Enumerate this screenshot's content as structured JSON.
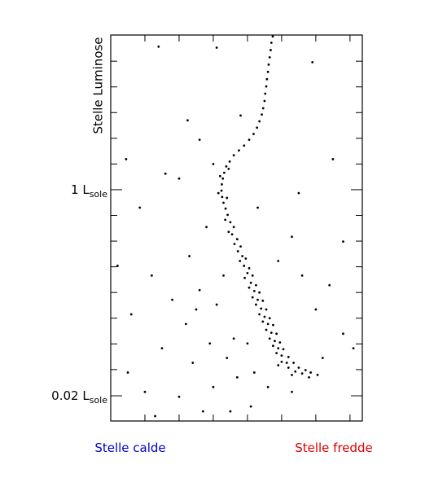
{
  "chart_data": {
    "type": "scatter",
    "ylabel": "Stelle Luminose",
    "annotations": [
      {
        "text": "Stelle calde",
        "color": "#0000cc"
      },
      {
        "text": "Stelle fredde",
        "color": "#dd0000"
      }
    ],
    "color": "#000000",
    "xlim": [
      0,
      7.36
    ],
    "xminorticks": [
      1,
      2,
      3,
      4,
      5,
      6,
      7
    ],
    "ylim": [
      1.64,
      9.6
    ],
    "yinvert": true,
    "yticks": [
      {
        "value": 4.83,
        "label": "1 L",
        "label_sub": "sole"
      },
      {
        "value": 9.08,
        "label": "0.02 L",
        "label_sub": "sole"
      }
    ],
    "yminorticks": [
      2.18,
      2.71,
      3.24,
      3.77,
      4.3,
      5.36,
      5.89,
      6.42,
      6.95,
      7.48,
      8.01,
      8.54
    ],
    "x": [
      4.74,
      4.7,
      4.68,
      4.65,
      4.62,
      4.6,
      4.57,
      4.55,
      4.52,
      4.5,
      4.46,
      4.42,
      4.35,
      4.28,
      4.18,
      4.05,
      3.9,
      3.75,
      3.6,
      3.48,
      3.38,
      3.32,
      3.28,
      3.25,
      3.24,
      3.26,
      3.3,
      3.36,
      3.2,
      3.45,
      3.15,
      3.4,
      3.42,
      3.5,
      3.35,
      3.6,
      3.55,
      3.45,
      3.7,
      3.62,
      3.8,
      3.72,
      3.85,
      3.95,
      3.78,
      3.9,
      4.05,
      4.0,
      4.15,
      3.92,
      4.1,
      4.25,
      4.05,
      4.2,
      4.35,
      4.15,
      4.3,
      4.45,
      4.25,
      4.4,
      4.55,
      4.35,
      4.5,
      4.65,
      4.45,
      4.6,
      4.75,
      4.55,
      4.7,
      4.85,
      4.65,
      4.8,
      4.95,
      4.75,
      4.9,
      5.05,
      4.85,
      5.0,
      5.2,
      5.0,
      5.15,
      5.35,
      5.2,
      5.5,
      5.4,
      5.7,
      5.6,
      5.85,
      5.3,
      4.9,
      5.8,
      6.05,
      0.45,
      1.4,
      3.1,
      5.9,
      3.8,
      2.25,
      1.6,
      2.0,
      6.5,
      0.85,
      5.5,
      6.8,
      0.2,
      1.2,
      2.3,
      2.8,
      2.6,
      1.8,
      0.6,
      2.2,
      3.1,
      2.9,
      1.5,
      0.5,
      2.4,
      3.4,
      1.0,
      2.0,
      3.0,
      3.7,
      4.2,
      4.6,
      5.3,
      6.2,
      6.8,
      6.0,
      5.6,
      4.9,
      5.3,
      6.4,
      2.7,
      3.5,
      1.3,
      4.1,
      7.1,
      4.3,
      3.0,
      2.6,
      3.6,
      3.3,
      4.0,
      2.5
    ],
    "values": [
      1.67,
      1.8,
      1.95,
      2.1,
      2.25,
      2.4,
      2.55,
      2.7,
      2.85,
      3.0,
      3.15,
      3.28,
      3.42,
      3.55,
      3.68,
      3.8,
      3.92,
      4.02,
      4.12,
      4.25,
      4.35,
      4.48,
      4.6,
      4.72,
      4.85,
      4.98,
      5.1,
      5.22,
      4.55,
      4.4,
      4.9,
      5.0,
      5.35,
      5.5,
      5.45,
      5.6,
      5.75,
      5.7,
      5.85,
      5.95,
      6.0,
      6.1,
      6.2,
      6.25,
      6.3,
      6.4,
      6.45,
      6.55,
      6.6,
      6.65,
      6.75,
      6.8,
      6.85,
      6.92,
      6.95,
      7.05,
      7.1,
      7.12,
      7.2,
      7.28,
      7.3,
      7.4,
      7.45,
      7.48,
      7.55,
      7.6,
      7.62,
      7.72,
      7.78,
      7.8,
      7.9,
      7.95,
      7.98,
      8.05,
      8.1,
      8.12,
      8.2,
      8.25,
      8.28,
      8.38,
      8.4,
      8.4,
      8.5,
      8.5,
      8.58,
      8.55,
      8.62,
      8.6,
      8.65,
      8.45,
      8.7,
      8.65,
      4.2,
      1.88,
      1.9,
      2.2,
      3.3,
      3.4,
      4.5,
      4.6,
      4.2,
      5.2,
      4.9,
      5.9,
      6.4,
      6.6,
      6.2,
      5.6,
      6.9,
      7.1,
      7.4,
      7.6,
      7.2,
      8.0,
      8.1,
      8.6,
      8.4,
      8.3,
      9.0,
      9.1,
      8.9,
      8.7,
      8.6,
      8.9,
      9.0,
      8.3,
      7.8,
      7.3,
      6.6,
      6.3,
      5.8,
      6.8,
      9.4,
      9.4,
      9.5,
      9.3,
      8.1,
      5.2,
      4.3,
      3.8,
      7.9,
      6.6,
      8.0,
      7.3
    ]
  }
}
